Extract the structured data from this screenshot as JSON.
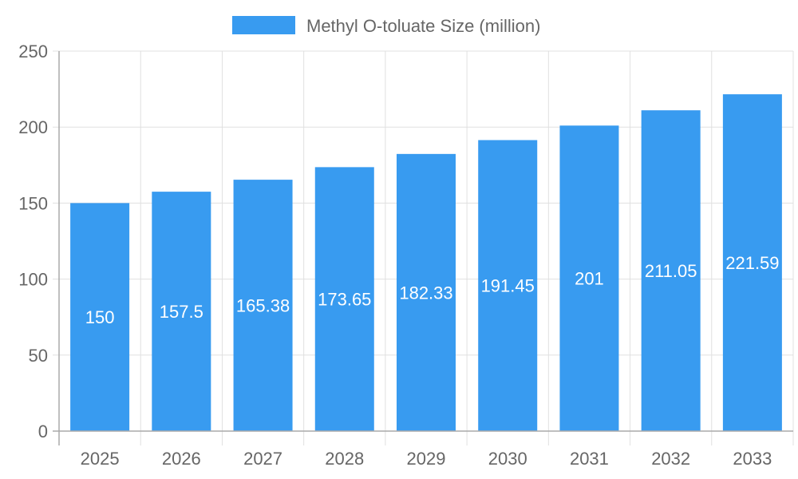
{
  "chart_data": {
    "type": "bar",
    "categories": [
      "2025",
      "2026",
      "2027",
      "2028",
      "2029",
      "2030",
      "2031",
      "2032",
      "2033"
    ],
    "series": [
      {
        "name": "Methyl O-toluate Size (million)",
        "values": [
          150,
          157.5,
          165.38,
          173.65,
          182.33,
          191.45,
          201,
          211.05,
          221.59
        ],
        "color": "#389bf0"
      }
    ],
    "data_labels": [
      "150",
      "157.5",
      "165.38",
      "173.65",
      "182.33",
      "191.45",
      "201",
      "211.05",
      "221.59"
    ],
    "yticks": [
      "0",
      "50",
      "100",
      "150",
      "200",
      "250"
    ],
    "ylim": [
      0,
      250
    ],
    "grid": true,
    "legend_position": "top",
    "title": "",
    "xlabel": "",
    "ylabel": ""
  }
}
